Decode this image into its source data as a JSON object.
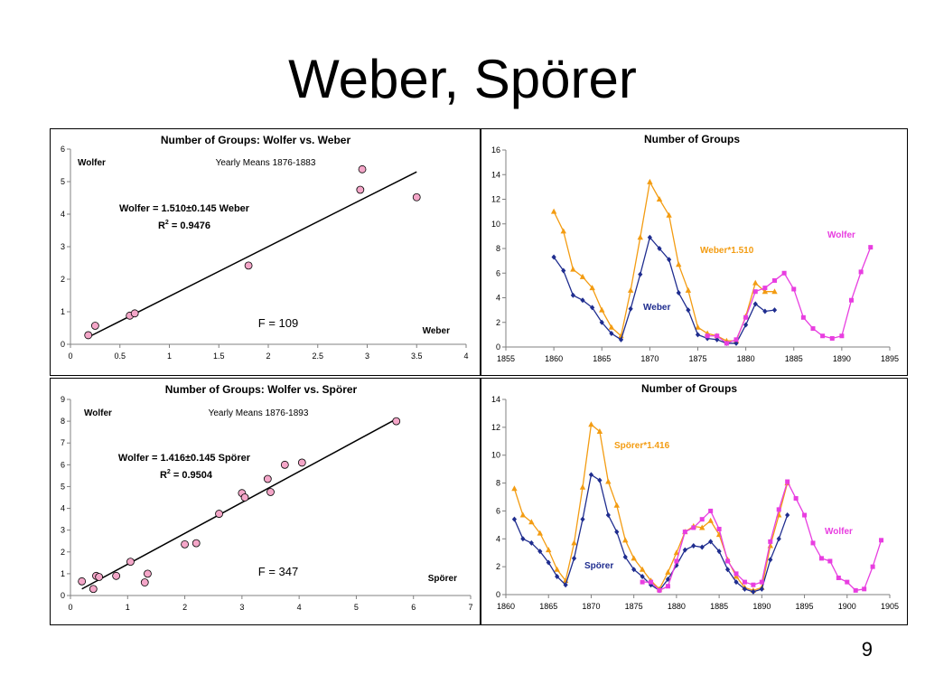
{
  "slide": {
    "title": "Weber, Spörer",
    "page_number": "9"
  },
  "chart_data": [
    {
      "type": "scatter",
      "title": "Number of Groups: Wolfer vs. Weber",
      "ylabel": "Wolfer",
      "xlabel": "Weber",
      "subtitle": "Yearly Means 1876-1883",
      "equation": "Wolfer = 1.510±0.145 Weber",
      "r2_label": "R",
      "r2_value": " = 0.9476",
      "f_stat": "F = 109",
      "xlim": [
        0,
        4
      ],
      "ylim": [
        0,
        6
      ],
      "xticks": [
        "0",
        "0.5",
        "1",
        "1.5",
        "2",
        "2.5",
        "3",
        "3.5",
        "4"
      ],
      "yticks": [
        "0",
        "1",
        "2",
        "3",
        "4",
        "5",
        "6"
      ],
      "points": [
        [
          0.18,
          0.28
        ],
        [
          0.25,
          0.57
        ],
        [
          0.6,
          0.88
        ],
        [
          0.65,
          0.95
        ],
        [
          1.8,
          2.42
        ],
        [
          2.93,
          4.75
        ],
        [
          2.95,
          5.38
        ],
        [
          3.5,
          4.52
        ]
      ],
      "fit_line": [
        [
          0.2,
          0.25
        ],
        [
          3.5,
          5.3
        ]
      ],
      "grid": false,
      "colors": {
        "point_fill": "#f4a6c8",
        "line": "#000000"
      }
    },
    {
      "type": "line",
      "title": "Number of Groups",
      "xlim": [
        1855,
        1895
      ],
      "ylim": [
        0,
        16
      ],
      "xticks": [
        "1855",
        "1860",
        "1865",
        "1870",
        "1875",
        "1880",
        "1885",
        "1890",
        "1895"
      ],
      "yticks": [
        "0",
        "2",
        "4",
        "6",
        "8",
        "10",
        "12",
        "14",
        "16"
      ],
      "series": [
        {
          "name": "Weber*1.510",
          "color": "#f39c12",
          "marker": "triangle",
          "x": [
            1860,
            1861,
            1862,
            1863,
            1864,
            1865,
            1866,
            1867,
            1868,
            1869,
            1870,
            1871,
            1872,
            1873,
            1874,
            1875,
            1876,
            1877,
            1878,
            1879,
            1880,
            1881,
            1882,
            1883
          ],
          "y": [
            11.0,
            9.4,
            6.3,
            5.7,
            4.8,
            3.0,
            1.6,
            0.9,
            4.6,
            8.9,
            13.4,
            12.0,
            10.7,
            6.7,
            4.6,
            1.6,
            1.1,
            0.9,
            0.5,
            0.5,
            2.5,
            5.2,
            4.5,
            4.5
          ]
        },
        {
          "name": "Weber",
          "color": "#1f2d8f",
          "marker": "diamond",
          "x": [
            1860,
            1861,
            1862,
            1863,
            1864,
            1865,
            1866,
            1867,
            1868,
            1869,
            1870,
            1871,
            1872,
            1873,
            1874,
            1875,
            1876,
            1877,
            1878,
            1879,
            1880,
            1881,
            1882,
            1883
          ],
          "y": [
            7.3,
            6.2,
            4.2,
            3.8,
            3.2,
            2.0,
            1.1,
            0.6,
            3.1,
            5.9,
            8.9,
            8.0,
            7.1,
            4.4,
            3.0,
            1.0,
            0.7,
            0.6,
            0.3,
            0.3,
            1.8,
            3.5,
            2.9,
            3.0
          ]
        },
        {
          "name": "Wolfer",
          "color": "#e83ee0",
          "marker": "square",
          "x": [
            1876,
            1877,
            1878,
            1879,
            1880,
            1881,
            1882,
            1883,
            1884,
            1885,
            1886,
            1887,
            1888,
            1889,
            1890,
            1891,
            1892,
            1893
          ],
          "y": [
            0.9,
            0.9,
            0.3,
            0.6,
            2.4,
            4.5,
            4.8,
            5.4,
            6.0,
            4.7,
            2.4,
            1.5,
            0.9,
            0.7,
            0.9,
            3.8,
            6.1,
            8.1
          ]
        }
      ],
      "annotations": {
        "weber_scaled": "Weber*1.510",
        "weber": "Weber",
        "wolfer": "Wolfer"
      },
      "grid": false
    },
    {
      "type": "scatter",
      "title": "Number of Groups: Wolfer vs. Spörer",
      "ylabel": "Wolfer",
      "xlabel": "Spörer",
      "subtitle": "Yearly Means 1876-1893",
      "equation": "Wolfer = 1.416±0.145 Spörer",
      "r2_label": "R",
      "r2_value": " = 0.9504",
      "f_stat": "F = 347",
      "xlim": [
        0,
        7
      ],
      "ylim": [
        0,
        9
      ],
      "xticks": [
        "0",
        "1",
        "2",
        "3",
        "4",
        "5",
        "6",
        "7"
      ],
      "yticks": [
        "0",
        "1",
        "2",
        "3",
        "4",
        "5",
        "6",
        "7",
        "8",
        "9"
      ],
      "points": [
        [
          0.2,
          0.65
        ],
        [
          0.4,
          0.3
        ],
        [
          0.45,
          0.9
        ],
        [
          0.5,
          0.85
        ],
        [
          0.8,
          0.9
        ],
        [
          1.05,
          1.55
        ],
        [
          1.3,
          0.6
        ],
        [
          1.35,
          1.0
        ],
        [
          2.0,
          2.35
        ],
        [
          2.2,
          2.4
        ],
        [
          2.6,
          3.75
        ],
        [
          3.0,
          4.7
        ],
        [
          3.05,
          4.5
        ],
        [
          3.45,
          5.35
        ],
        [
          3.5,
          4.75
        ],
        [
          3.75,
          6.0
        ],
        [
          4.05,
          6.1
        ],
        [
          5.7,
          8.0
        ]
      ],
      "fit_line": [
        [
          0.2,
          0.3
        ],
        [
          5.7,
          8.1
        ]
      ],
      "grid": false,
      "colors": {
        "point_fill": "#f4a6c8",
        "line": "#000000"
      }
    },
    {
      "type": "line",
      "title": "Number of Groups",
      "xlim": [
        1860,
        1905
      ],
      "ylim": [
        0,
        14
      ],
      "xticks": [
        "1860",
        "1865",
        "1870",
        "1875",
        "1880",
        "1885",
        "1890",
        "1895",
        "1900",
        "1905"
      ],
      "yticks": [
        "0",
        "2",
        "4",
        "6",
        "8",
        "10",
        "12",
        "14"
      ],
      "series": [
        {
          "name": "Spörer*1.416",
          "color": "#f39c12",
          "marker": "triangle",
          "x": [
            1861,
            1862,
            1863,
            1864,
            1865,
            1866,
            1867,
            1868,
            1869,
            1870,
            1871,
            1872,
            1873,
            1874,
            1875,
            1876,
            1877,
            1878,
            1879,
            1880,
            1881,
            1882,
            1883,
            1884,
            1885,
            1886,
            1887,
            1888,
            1889,
            1890,
            1891,
            1892,
            1893
          ],
          "y": [
            7.6,
            5.7,
            5.2,
            4.4,
            3.2,
            1.8,
            1.0,
            3.7,
            7.7,
            12.2,
            11.7,
            8.1,
            6.4,
            3.9,
            2.6,
            1.8,
            1.0,
            0.4,
            1.6,
            3.0,
            4.5,
            4.9,
            4.8,
            5.3,
            4.3,
            2.5,
            1.3,
            0.5,
            0.3,
            0.5,
            3.5,
            5.7,
            8.0
          ]
        },
        {
          "name": "Spörer",
          "color": "#1f2d8f",
          "marker": "diamond",
          "x": [
            1861,
            1862,
            1863,
            1864,
            1865,
            1866,
            1867,
            1868,
            1869,
            1870,
            1871,
            1872,
            1873,
            1874,
            1875,
            1876,
            1877,
            1878,
            1879,
            1880,
            1881,
            1882,
            1883,
            1884,
            1885,
            1886,
            1887,
            1888,
            1889,
            1890,
            1891,
            1892,
            1893
          ],
          "y": [
            5.4,
            4.0,
            3.7,
            3.1,
            2.3,
            1.3,
            0.7,
            2.6,
            5.4,
            8.6,
            8.2,
            5.7,
            4.5,
            2.7,
            1.8,
            1.3,
            0.7,
            0.3,
            1.1,
            2.1,
            3.2,
            3.5,
            3.4,
            3.8,
            3.1,
            1.8,
            0.9,
            0.4,
            0.2,
            0.4,
            2.5,
            4.0,
            5.7
          ]
        },
        {
          "name": "Wolfer",
          "color": "#e83ee0",
          "marker": "square",
          "x": [
            1876,
            1877,
            1878,
            1879,
            1880,
            1881,
            1882,
            1883,
            1884,
            1885,
            1886,
            1887,
            1888,
            1889,
            1890,
            1891,
            1892,
            1893,
            1894,
            1895,
            1896,
            1897,
            1898,
            1899,
            1900,
            1901,
            1902,
            1903,
            1904
          ],
          "y": [
            0.9,
            0.9,
            0.3,
            0.6,
            2.4,
            4.5,
            4.8,
            5.4,
            6.0,
            4.7,
            2.4,
            1.5,
            0.9,
            0.7,
            0.9,
            3.8,
            6.1,
            8.1,
            6.9,
            5.7,
            3.7,
            2.6,
            2.4,
            1.2,
            0.9,
            0.3,
            0.4,
            2.0,
            3.9
          ]
        }
      ],
      "annotations": {
        "sporer_scaled": "Spörer*1.416",
        "sporer": "Spörer",
        "wolfer": "Wolfer"
      },
      "grid": false
    }
  ]
}
